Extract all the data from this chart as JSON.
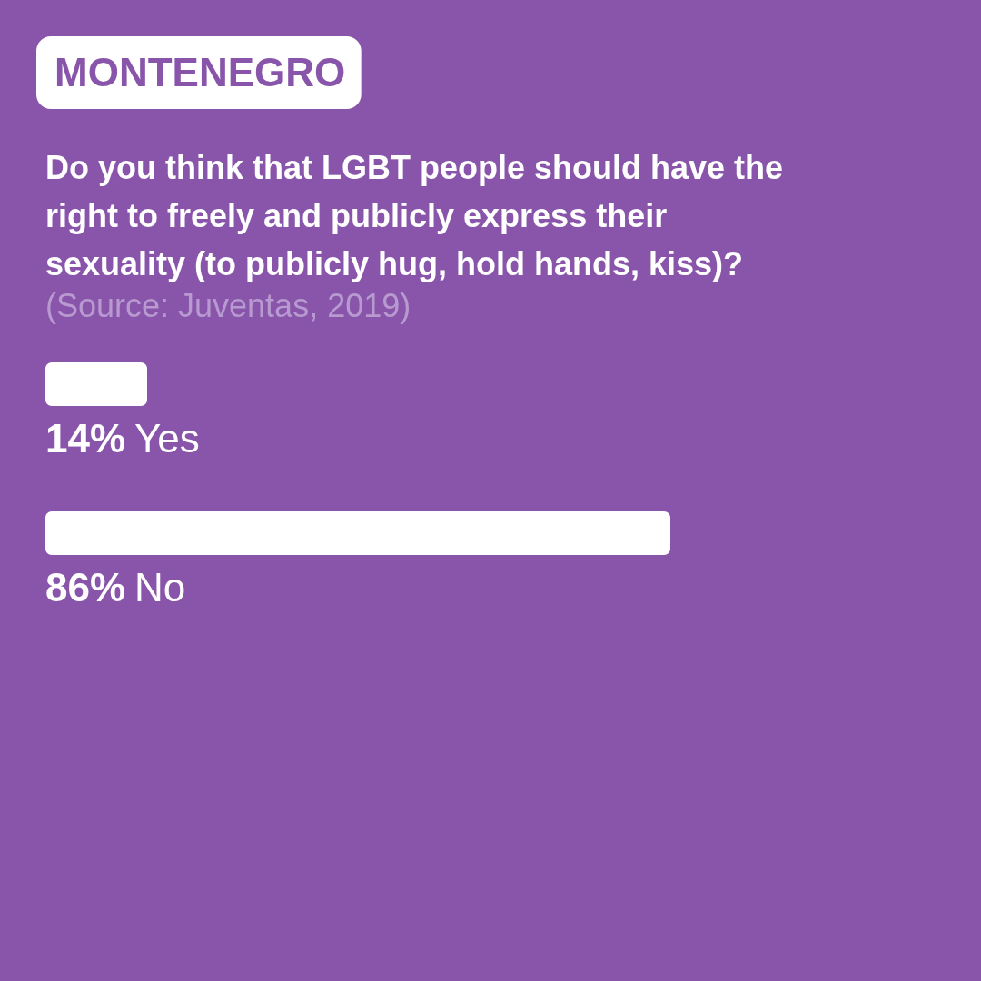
{
  "chart_data": {
    "type": "bar",
    "orientation": "horizontal",
    "title": "MONTENEGRO",
    "subtitle": "Do you think that LGBT people should have the right to freely and publicly express their sexuality (to publicly hug, hold hands, kiss)?",
    "annotations": [
      "(Source: Juventas, 2019)"
    ],
    "categories": [
      "Yes",
      "No"
    ],
    "values": [
      14,
      86
    ],
    "value_labels": [
      "14%",
      "86%"
    ],
    "color": "#ffffff"
  }
}
